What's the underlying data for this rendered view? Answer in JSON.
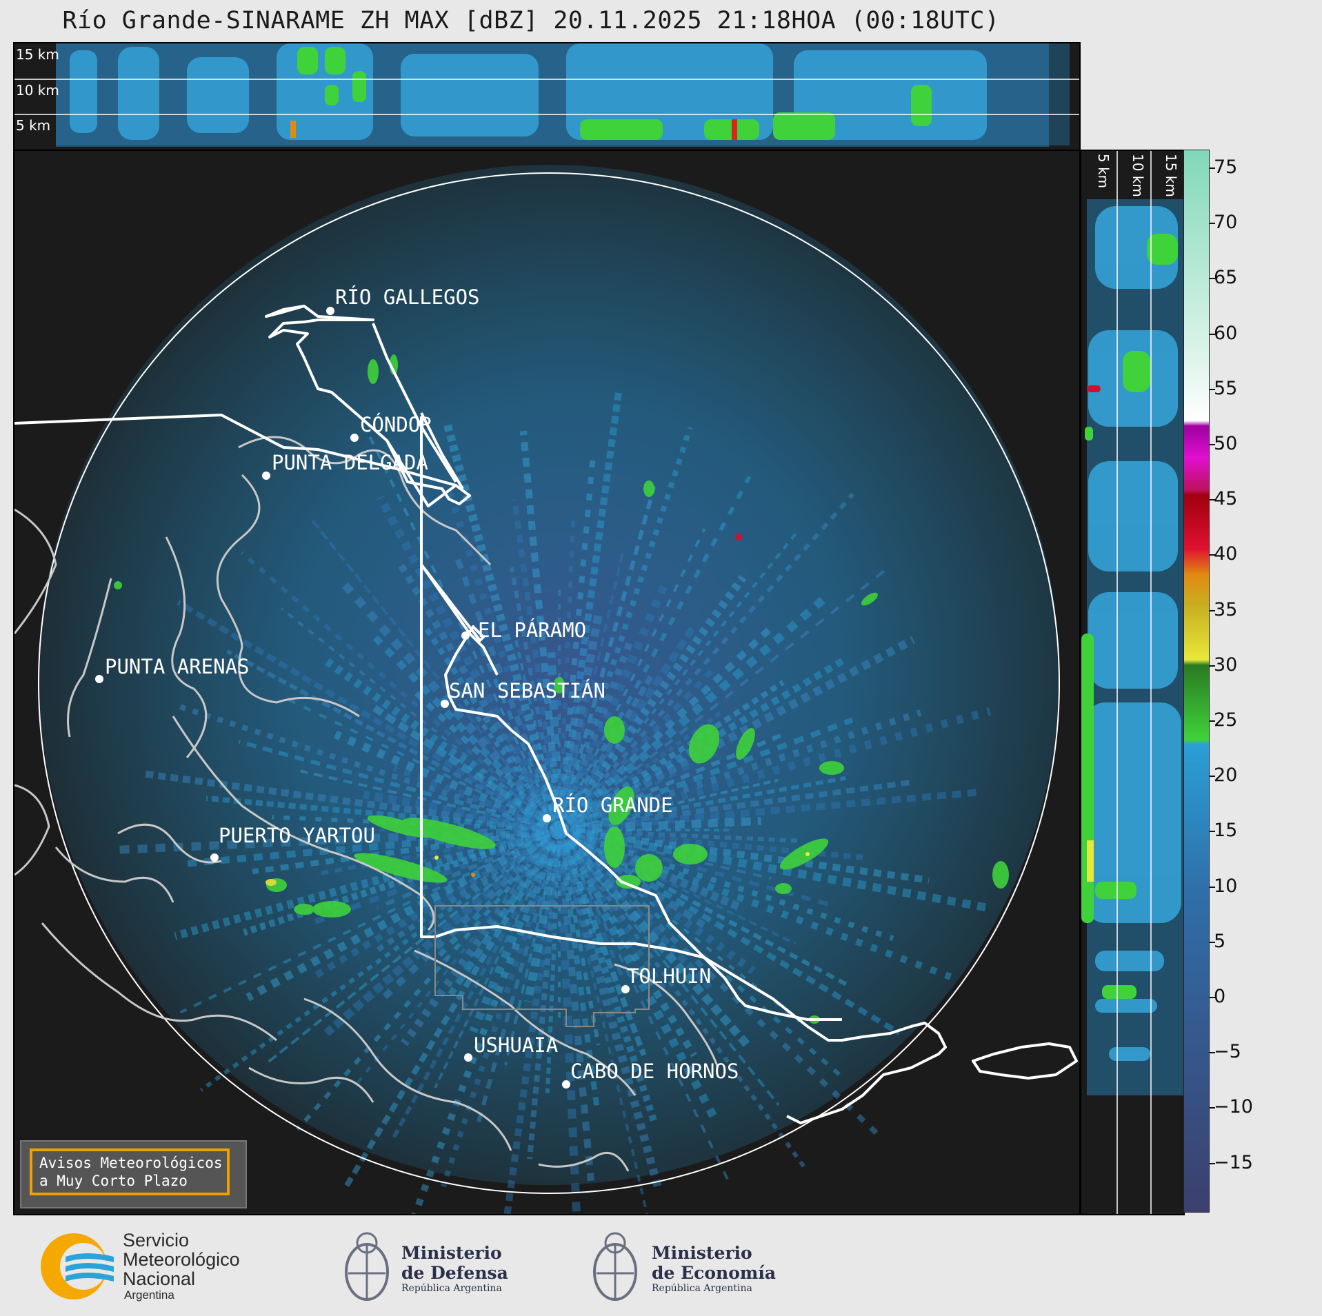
{
  "title": "Río Grande-SINARAME ZH MAX [dBZ] 20.11.2025 21:18HOA (00:18UTC)",
  "height_labels": [
    "15 km",
    "10 km",
    "5 km"
  ],
  "cities": [
    {
      "name": "RÍO GALLEGOS"
    },
    {
      "name": "CÓNDOR"
    },
    {
      "name": "PUNTA DELGADA"
    },
    {
      "name": "EL PÁRAMO"
    },
    {
      "name": "PUNTA ARENAS"
    },
    {
      "name": "SAN SEBASTIÁN"
    },
    {
      "name": "RÍO GRANDE"
    },
    {
      "name": "PUERTO YARTOU"
    },
    {
      "name": "TOLHUIN"
    },
    {
      "name": "USHUAIA"
    },
    {
      "name": "CABO DE HORNOS"
    }
  ],
  "notice": {
    "line1": "Avisos Meteorológicos",
    "line2": "a Muy Corto Plazo"
  },
  "colorbar": {
    "ticks": [
      "75",
      "70",
      "65",
      "60",
      "55",
      "50",
      "45",
      "40",
      "35",
      "30",
      "25",
      "20",
      "15",
      "10",
      "5",
      "0",
      "−5",
      "−10",
      "−15"
    ],
    "colors": {
      "low": "#3c3f6e",
      "mid": "#2a9fd6",
      "green": "#2fa82a",
      "yellow": "#e8e83a",
      "orange": "#e08a10",
      "red": "#d01030",
      "magenta": "#e010d0",
      "white": "#ffffff",
      "teal": "#80d8b8"
    }
  },
  "logos": {
    "smn": {
      "line1": "Servicio",
      "line2": "Meteorológico",
      "line3": "Nacional",
      "line4": "Argentina"
    },
    "defensa": {
      "line1": "Ministerio",
      "line2": "de Defensa",
      "line3": "República Argentina"
    },
    "economia": {
      "line1": "Ministerio",
      "line2": "de Economía",
      "line3": "República Argentina"
    }
  }
}
